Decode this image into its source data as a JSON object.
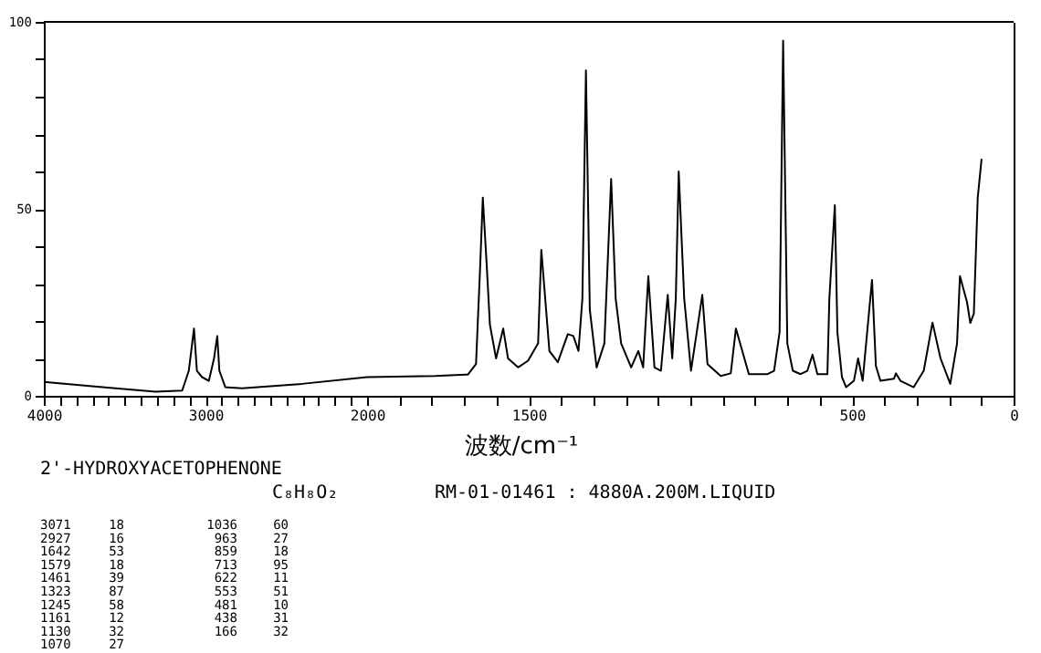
{
  "chart_data": [
    {
      "type": "line",
      "title": "2'-HYDROXYACETOPHENONE",
      "x": [
        4000,
        3638,
        3309,
        3144,
        3103,
        3071,
        3053,
        3021,
        2979,
        2947,
        2927,
        2914,
        2877,
        2774,
        2403,
        2000
      ],
      "series": [
        {
          "color": "#000000",
          "values": [
            3.7,
            2.3,
            1.1,
            1.4,
            6.7,
            18,
            6.7,
            5,
            4,
            10,
            16,
            6.7,
            2.3,
            2,
            3.2,
            5
          ]
        }
      ],
      "xlim": [
        4000,
        2000
      ],
      "xticks": [
        4000,
        {
          "value": 3900,
          "label": null
        },
        {
          "value": 3800,
          "label": null
        },
        {
          "value": 3700,
          "label": null
        },
        {
          "value": 3600,
          "label": null
        },
        {
          "value": 3500,
          "label": null
        },
        {
          "value": 3400,
          "label": null
        },
        {
          "value": 3300,
          "label": null
        },
        {
          "value": 3200,
          "label": null
        },
        {
          "value": 3100,
          "label": null
        },
        3000,
        {
          "value": 2900,
          "label": null
        },
        {
          "value": 2800,
          "label": null
        },
        {
          "value": 2700,
          "label": null
        },
        {
          "value": 2600,
          "label": null
        },
        {
          "value": 2500,
          "label": null
        },
        {
          "value": 2400,
          "label": null
        },
        {
          "value": 2300,
          "label": null
        },
        {
          "value": 2200,
          "label": null
        },
        {
          "value": 2100,
          "label": null
        },
        2000
      ],
      "ylim": [
        0,
        100
      ],
      "yticks": [
        0,
        {
          "value": 10,
          "label": null
        },
        {
          "value": 20,
          "label": null
        },
        {
          "value": 30,
          "label": null
        },
        {
          "value": 40,
          "label": null
        },
        50,
        {
          "value": 60,
          "label": null
        },
        {
          "value": 70,
          "label": null
        },
        {
          "value": 80,
          "label": null
        },
        {
          "value": 90,
          "label": null
        },
        100
      ],
      "grid": false,
      "annotations": [
        "C₈H₈O₂",
        "RM-01-01461 : 4880A.200M.LIQUID",
        "3071",
        "18",
        "1036",
        "60",
        "2927",
        "16",
        "963",
        "27",
        "1642",
        "53",
        "859",
        "18",
        "1579",
        "18",
        "713",
        "95",
        "1461",
        "39",
        "622",
        "11",
        "1323",
        "87",
        "553",
        "51",
        "1245",
        "58",
        "481",
        "10",
        "1161",
        "12",
        "438",
        "31",
        "1130",
        "32",
        "166",
        "32",
        "1070",
        "27"
      ]
    },
    {
      "type": "line",
      "xlabel": "波数/cm⁻¹",
      "x": [
        2000,
        1790,
        1688,
        1663,
        1650,
        1642,
        1630,
        1620,
        1601,
        1579,
        1564,
        1533,
        1502,
        1471,
        1461,
        1436,
        1410,
        1379,
        1362,
        1346,
        1334,
        1323,
        1311,
        1290,
        1266,
        1245,
        1231,
        1214,
        1183,
        1161,
        1146,
        1130,
        1111,
        1091,
        1070,
        1056,
        1045,
        1036,
        1019,
        998,
        963,
        947,
        906,
        875,
        859,
        819,
        761,
        741,
        724,
        713,
        700,
        683,
        659,
        638,
        622,
        607,
        576,
        570,
        553,
        545,
        531,
        518,
        494,
        481,
        467,
        438,
        426,
        412,
        370,
        364,
        350,
        309,
        278,
        251,
        226,
        196,
        175,
        166,
        144,
        134,
        123,
        111,
        99
      ],
      "series": [
        {
          "color": "#000000",
          "values": [
            5,
            5.3,
            5.7,
            8.5,
            35,
            53,
            35,
            19,
            10,
            18,
            10,
            7.6,
            9.4,
            14,
            39,
            12,
            9,
            16.5,
            16,
            12,
            26,
            87,
            23,
            7.6,
            14,
            58,
            26,
            14,
            7.6,
            12,
            7.6,
            32,
            7.6,
            6.7,
            27,
            10,
            26,
            60,
            26,
            6.7,
            27,
            8.5,
            5.3,
            6,
            18,
            5.8,
            5.8,
            6.7,
            17,
            95,
            14,
            6.7,
            5.8,
            6.7,
            11,
            5.8,
            5.8,
            26,
            51,
            17,
            5,
            2.3,
            4,
            10,
            4,
            31,
            8,
            4,
            4.6,
            6,
            4,
            2.3,
            6.7,
            19.6,
            10,
            3.2,
            14,
            32,
            25,
            19.5,
            22,
            53,
            63.4
          ]
        }
      ],
      "xlim": [
        2000,
        0
      ],
      "xticks": [
        {
          "value": 1900,
          "label": null
        },
        {
          "value": 1800,
          "label": null
        },
        {
          "value": 1700,
          "label": null
        },
        {
          "value": 1600,
          "label": null
        },
        1500,
        {
          "value": 1400,
          "label": null
        },
        {
          "value": 1300,
          "label": null
        },
        {
          "value": 1200,
          "label": null
        },
        {
          "value": 1100,
          "label": null
        },
        {
          "value": 1000,
          "label": null
        },
        {
          "value": 900,
          "label": null
        },
        {
          "value": 800,
          "label": null
        },
        {
          "value": 700,
          "label": null
        },
        {
          "value": 600,
          "label": null
        },
        500,
        {
          "value": 400,
          "label": null
        },
        {
          "value": 300,
          "label": null
        },
        {
          "value": 200,
          "label": null
        },
        {
          "value": 100,
          "label": null
        },
        0
      ],
      "ylim": [
        0,
        100
      ],
      "tick_labels": "x",
      "grid": false
    }
  ]
}
